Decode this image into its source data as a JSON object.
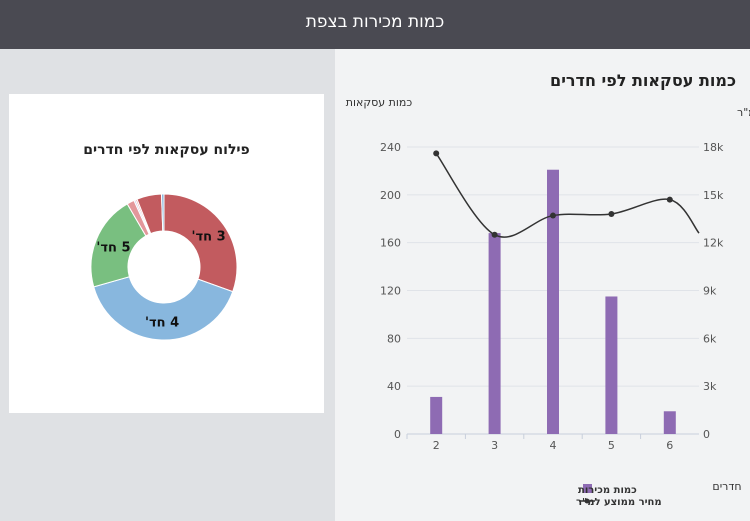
{
  "header": {
    "title": "כמות מכירות בצפת"
  },
  "donut": {
    "title": "פילוח עסקאות לפי חדרים",
    "slices": [
      {
        "label": "3 חד'",
        "value": 167,
        "color": "#c25b5f"
      },
      {
        "label": "4 חד'",
        "value": 220,
        "color": "#88b7de"
      },
      {
        "label": "5 חד'",
        "value": 115,
        "color": "#79bf80"
      },
      {
        "label": "",
        "value": 9,
        "color": "#e3979b"
      },
      {
        "label": "",
        "value": 2,
        "color": "#c9c9e6"
      },
      {
        "label": "",
        "value": 2,
        "color": "#f3a7ad"
      },
      {
        "label": "",
        "value": 30,
        "color": "#c25b5f"
      },
      {
        "label": "",
        "value": 3,
        "color": "#88b7de"
      }
    ]
  },
  "chart": {
    "title": "כמות עסקאות לפי חדרים",
    "left_axis_title": "כמות עסקאות",
    "right_axis_title": "מחיר ממוצע למ\"ר",
    "x_axis_title": "חדרים"
  },
  "chart_data": {
    "type": "bar",
    "categories": [
      "2",
      "3",
      "4",
      "5",
      "6"
    ],
    "series": [
      {
        "name": "כמות מכירות",
        "type": "bar",
        "axis": "left",
        "color": "#8e6bb3",
        "values": [
          31,
          168,
          221,
          115,
          19
        ]
      },
      {
        "name": "מחיר ממוצע למ\"ר",
        "type": "line",
        "axis": "right",
        "color": "#333333",
        "values": [
          17600,
          12500,
          13700,
          13800,
          14700
        ],
        "trailing_value": 12600
      }
    ],
    "left_axis": {
      "min": 0,
      "max": 240,
      "ticks": [
        "0",
        "40",
        "80",
        "120",
        "160",
        "200",
        "240"
      ]
    },
    "right_axis": {
      "min": 0,
      "max": 18000,
      "ticks": [
        "0",
        "3k",
        "6k",
        "9k",
        "12k",
        "15k",
        "18k"
      ]
    },
    "legend": [
      "כמות מכירות",
      "מחיר ממוצע למ\"ר"
    ]
  }
}
